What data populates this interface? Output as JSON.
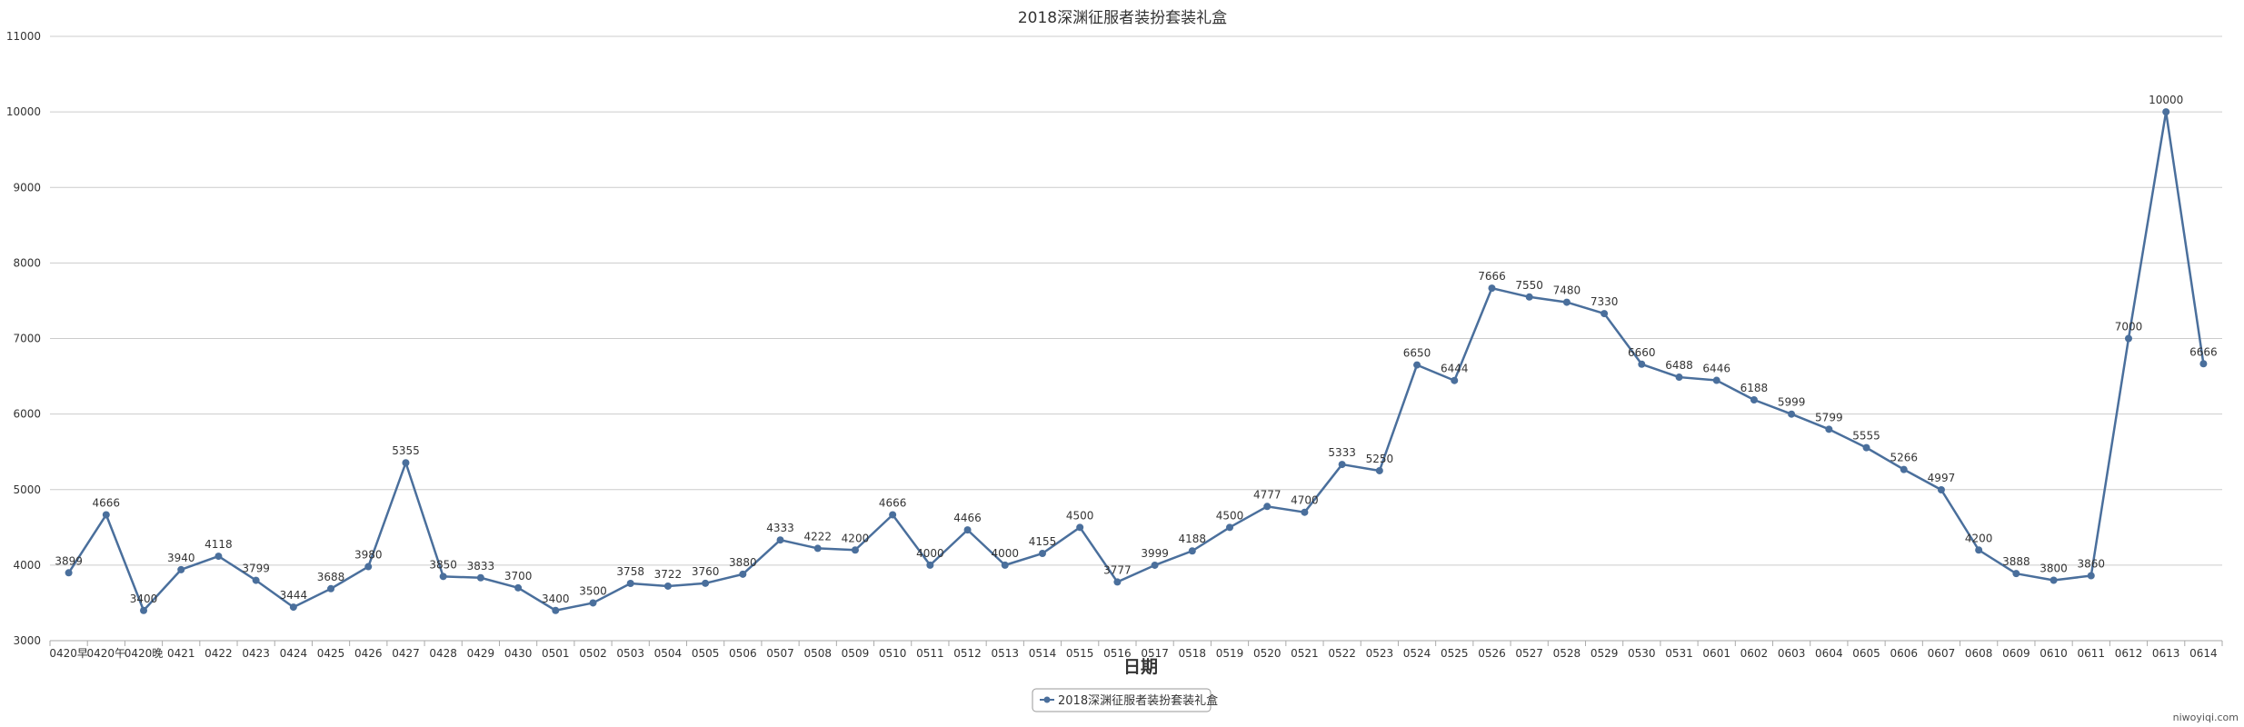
{
  "chart_data": {
    "type": "line",
    "title": "2018深渊征服者装扮套装礼盒",
    "xlabel": "日期",
    "ylabel": "",
    "ylim": [
      3000,
      11000
    ],
    "yticks": [
      3000,
      4000,
      5000,
      6000,
      7000,
      8000,
      9000,
      10000,
      11000
    ],
    "grid": true,
    "legend_position": "bottom-center",
    "categories": [
      "0420早",
      "0420午",
      "0420晚",
      "0421",
      "0422",
      "0423",
      "0424",
      "0425",
      "0426",
      "0427",
      "0428",
      "0429",
      "0430",
      "0501",
      "0502",
      "0503",
      "0504",
      "0505",
      "0506",
      "0507",
      "0508",
      "0509",
      "0510",
      "0511",
      "0512",
      "0513",
      "0514",
      "0515",
      "0516",
      "0517",
      "0518",
      "0519",
      "0520",
      "0521",
      "0522",
      "0523",
      "0524",
      "0525",
      "0526",
      "0527",
      "0528",
      "0529",
      "0530",
      "0531",
      "0601",
      "0602",
      "0603",
      "0604",
      "0605",
      "0606",
      "0607",
      "0608",
      "0609",
      "0610",
      "0611",
      "0612",
      "0613",
      "0614"
    ],
    "series": [
      {
        "name": "2018深渊征服者装扮套装礼盒",
        "color": "#4a6f9c",
        "values": [
          3899,
          4666,
          3400,
          3940,
          4118,
          3799,
          3444,
          3688,
          3980,
          5355,
          3850,
          3833,
          3700,
          3400,
          3500,
          3758,
          3722,
          3760,
          3880,
          4333,
          4222,
          4200,
          4666,
          4000,
          4466,
          4000,
          4155,
          4500,
          3777,
          3999,
          4188,
          4500,
          4777,
          4700,
          5333,
          5250,
          6650,
          6444,
          7666,
          7550,
          7480,
          7330,
          6660,
          6488,
          6446,
          6188,
          5999,
          5799,
          5555,
          5266,
          4997,
          4200,
          3888,
          3800,
          3860,
          7000,
          10000,
          6666
        ]
      }
    ]
  },
  "watermark": "niwoyiqi.com"
}
